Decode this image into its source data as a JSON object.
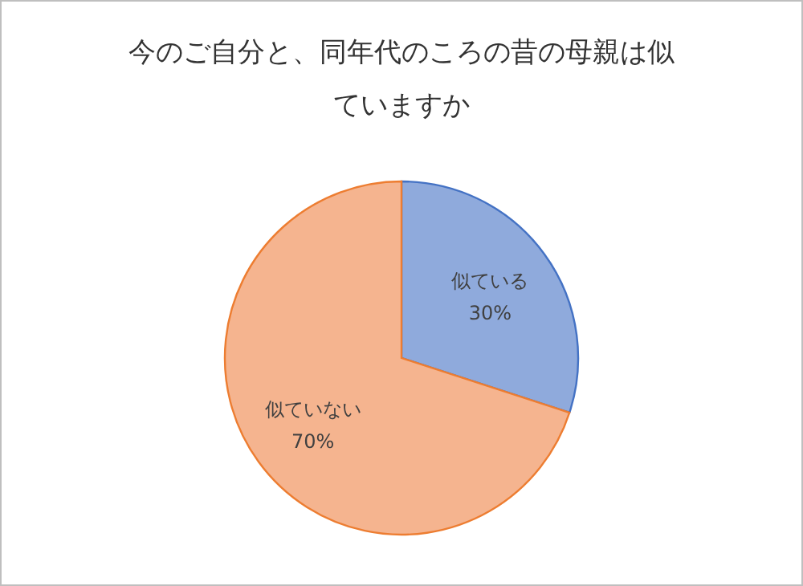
{
  "chart_data": {
    "type": "pie",
    "title": "今のご自分と、同年代のころの昔の母親は似ていますか",
    "categories": [
      "似ている",
      "似ていない"
    ],
    "values": [
      30,
      70
    ],
    "value_labels": [
      "30%",
      "70%"
    ],
    "colors": [
      "#8faadc",
      "#f5b48f"
    ],
    "legend": false
  }
}
